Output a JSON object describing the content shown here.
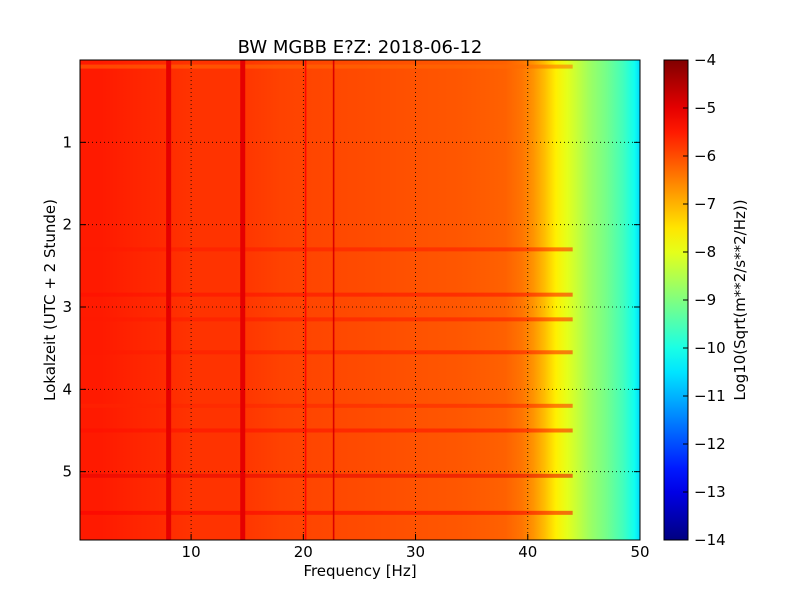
{
  "chart_data": {
    "type": "heatmap",
    "title": "BW MGBB E?Z: 2018-06-12",
    "xlabel": "Frequency [Hz]",
    "ylabel": "Lokalzeit (UTC + 2 Stunde)",
    "colorbar_label": "Log10(Sqrt(m**2/s**2/Hz))",
    "x_range": [
      0.1,
      50
    ],
    "y_range": [
      0,
      5.83
    ],
    "y_inverted": true,
    "grid": true,
    "x_ticks": [
      10,
      20,
      30,
      40,
      50
    ],
    "x_tick_labels": [
      "10",
      "20",
      "30",
      "40",
      "50"
    ],
    "y_ticks": [
      1,
      2,
      3,
      4,
      5
    ],
    "y_tick_labels": [
      "1",
      "2",
      "3",
      "4",
      "5"
    ],
    "colorbar_range": [
      -14,
      -4
    ],
    "colorbar_ticks": [
      -4,
      -5,
      -6,
      -7,
      -8,
      -9,
      -10,
      -11,
      -12,
      -13,
      -14
    ],
    "colorbar_tick_labels": [
      "−4",
      "−5",
      "−6",
      "−7",
      "−8",
      "−9",
      "−10",
      "−11",
      "−12",
      "−13",
      "−14"
    ],
    "colormap": "jet",
    "spectrum_profile": {
      "frequency_hz": [
        0.1,
        2,
        5,
        7,
        10,
        14,
        18,
        22,
        26,
        30,
        34,
        38,
        39.5,
        40.5,
        41.5,
        42.5,
        43.5,
        44.5,
        45.5,
        47,
        48.5,
        49.5,
        50
      ],
      "log10_amplitude": [
        -5.5,
        -5.5,
        -5.6,
        -5.65,
        -5.75,
        -5.75,
        -5.9,
        -5.95,
        -6.0,
        -6.05,
        -6.1,
        -6.2,
        -6.4,
        -6.7,
        -7.1,
        -7.6,
        -8.0,
        -8.35,
        -8.7,
        -9.1,
        -9.6,
        -10.1,
        -10.6
      ]
    },
    "spectral_lines_hz": [
      {
        "freq": 8.0,
        "log10_amplitude": -5.0
      },
      {
        "freq": 14.6,
        "log10_amplitude": -5.0
      },
      {
        "freq": 20.2,
        "log10_amplitude": -5.3
      },
      {
        "freq": 22.7,
        "log10_amplitude": -4.9
      }
    ],
    "time_bands_hours": [
      {
        "time": 0.08,
        "log10_amplitude": -6.3
      },
      {
        "time": 2.3,
        "log10_amplitude": -5.5
      },
      {
        "time": 2.85,
        "log10_amplitude": -5.4
      },
      {
        "time": 3.15,
        "log10_amplitude": -5.5
      },
      {
        "time": 3.55,
        "log10_amplitude": -5.5
      },
      {
        "time": 4.2,
        "log10_amplitude": -5.6
      },
      {
        "time": 4.5,
        "log10_amplitude": -5.4
      },
      {
        "time": 5.05,
        "log10_amplitude": -5.0
      },
      {
        "time": 5.5,
        "log10_amplitude": -5.2
      }
    ]
  }
}
